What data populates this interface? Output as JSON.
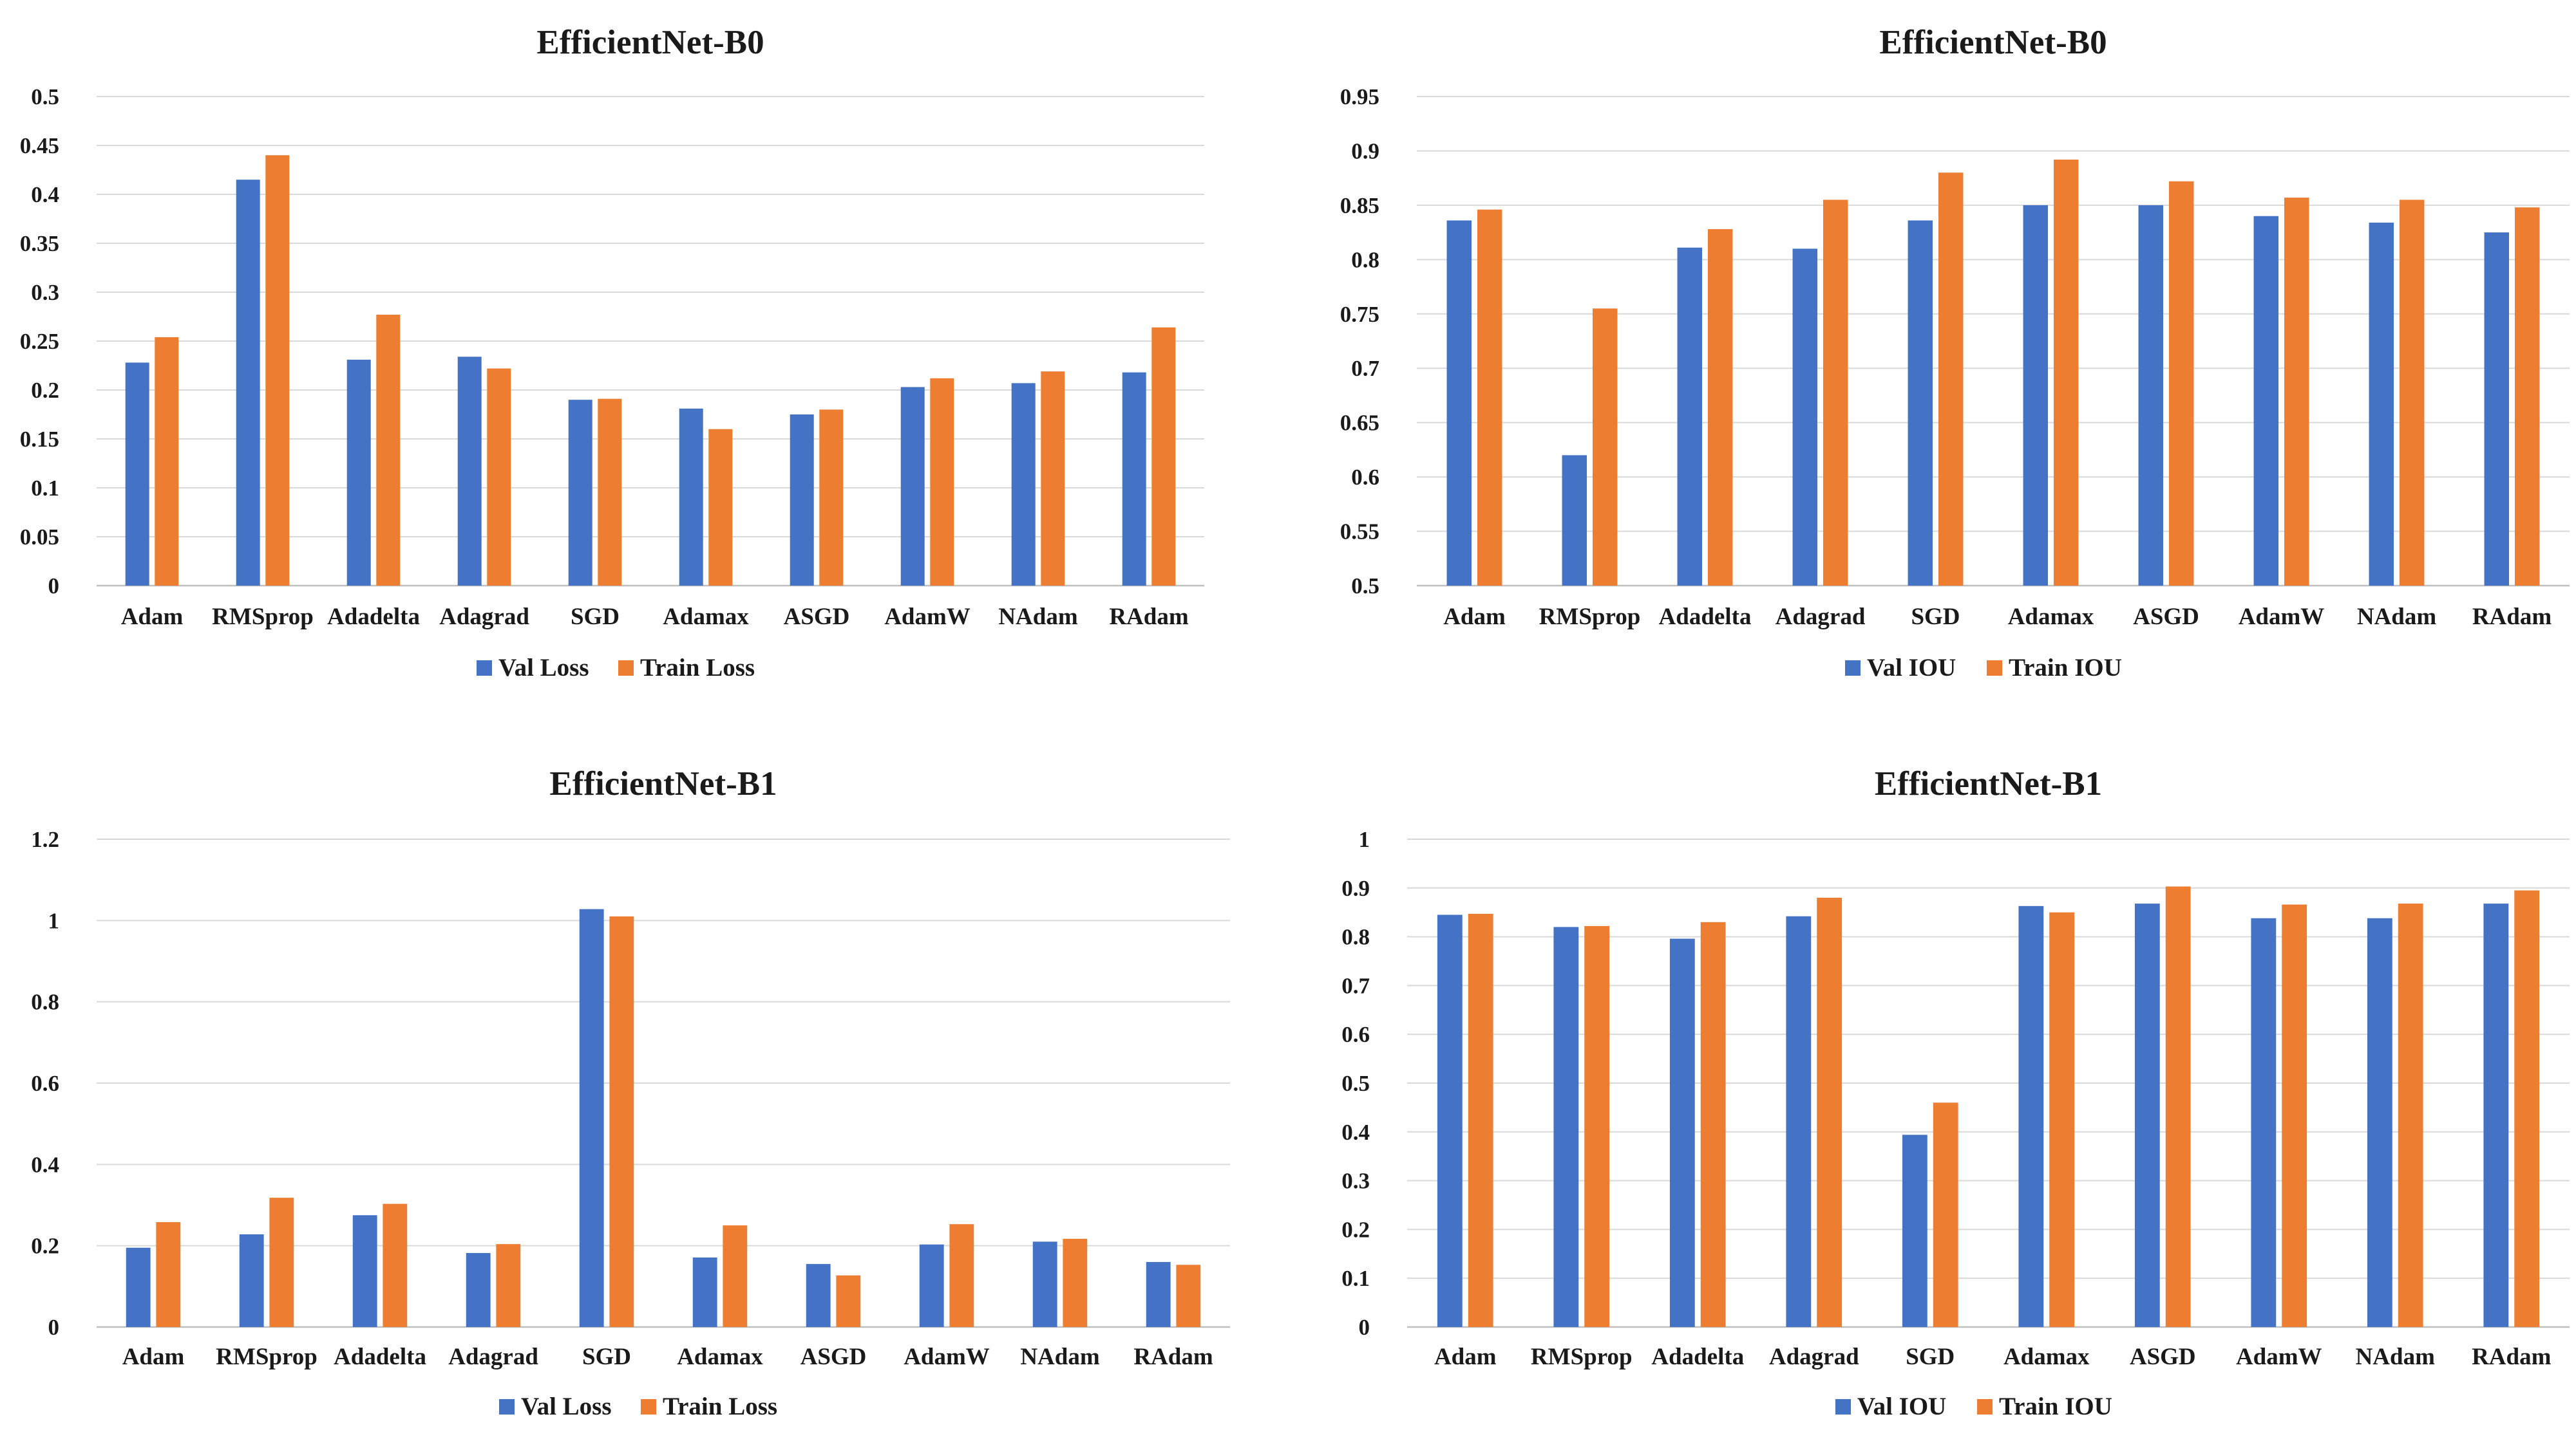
{
  "chart_data": [
    {
      "type": "bar",
      "title": "EfficientNet-B0",
      "categories": [
        "Adam",
        "RMSprop",
        "Adadelta",
        "Adagrad",
        "SGD",
        "Adamax",
        "ASGD",
        "AdamW",
        "NAdam",
        "RAdam"
      ],
      "series": [
        {
          "name": "Val Loss",
          "color": "#4472C4",
          "values": [
            0.228,
            0.415,
            0.231,
            0.234,
            0.19,
            0.181,
            0.175,
            0.203,
            0.207,
            0.218
          ]
        },
        {
          "name": "Train Loss",
          "color": "#ED7D31",
          "values": [
            0.254,
            0.44,
            0.277,
            0.222,
            0.191,
            0.16,
            0.18,
            0.212,
            0.219,
            0.264
          ]
        }
      ],
      "ylim": [
        0,
        0.5
      ],
      "yticks": [
        "0",
        "0.05",
        "0.1",
        "0.15",
        "0.2",
        "0.25",
        "0.3",
        "0.35",
        "0.4",
        "0.45",
        "0.5"
      ],
      "grid": true,
      "legend": "bottom"
    },
    {
      "type": "bar",
      "title": "EfficientNet-B0",
      "categories": [
        "Adam",
        "RMSprop",
        "Adadelta",
        "Adagrad",
        "SGD",
        "Adamax",
        "ASGD",
        "AdamW",
        "NAdam",
        "RAdam"
      ],
      "series": [
        {
          "name": "Val IOU",
          "color": "#4472C4",
          "values": [
            0.836,
            0.62,
            0.811,
            0.81,
            0.836,
            0.85,
            0.85,
            0.84,
            0.834,
            0.825
          ]
        },
        {
          "name": "Train IOU",
          "color": "#ED7D31",
          "values": [
            0.846,
            0.755,
            0.828,
            0.855,
            0.88,
            0.892,
            0.872,
            0.857,
            0.855,
            0.848
          ]
        }
      ],
      "ylim": [
        0.5,
        0.95
      ],
      "yticks": [
        "0.5",
        "0.55",
        "0.6",
        "0.65",
        "0.7",
        "0.75",
        "0.8",
        "0.85",
        "0.9",
        "0.95"
      ],
      "grid": true,
      "legend": "bottom"
    },
    {
      "type": "bar",
      "title": "EfficientNet-B1",
      "categories": [
        "Adam",
        "RMSprop",
        "Adadelta",
        "Adagrad",
        "SGD",
        "Adamax",
        "ASGD",
        "AdamW",
        "NAdam",
        "RAdam"
      ],
      "series": [
        {
          "name": "Val Loss",
          "color": "#4472C4",
          "values": [
            0.195,
            0.228,
            0.275,
            0.182,
            1.028,
            0.171,
            0.155,
            0.203,
            0.21,
            0.16
          ]
        },
        {
          "name": "Train Loss",
          "color": "#ED7D31",
          "values": [
            0.258,
            0.318,
            0.303,
            0.204,
            1.01,
            0.25,
            0.127,
            0.253,
            0.217,
            0.153
          ]
        }
      ],
      "ylim": [
        0,
        1.2
      ],
      "yticks": [
        "0",
        "0.2",
        "0.4",
        "0.6",
        "0.8",
        "1",
        "1.2"
      ],
      "grid": true,
      "legend": "bottom"
    },
    {
      "type": "bar",
      "title": "EfficientNet-B1",
      "categories": [
        "Adam",
        "RMSprop",
        "Adadelta",
        "Adagrad",
        "SGD",
        "Adamax",
        "ASGD",
        "AdamW",
        "NAdam",
        "RAdam"
      ],
      "series": [
        {
          "name": "Val IOU",
          "color": "#4472C4",
          "values": [
            0.845,
            0.82,
            0.796,
            0.842,
            0.394,
            0.863,
            0.868,
            0.838,
            0.838,
            0.868
          ]
        },
        {
          "name": "Train IOU",
          "color": "#ED7D31",
          "values": [
            0.847,
            0.822,
            0.83,
            0.88,
            0.46,
            0.85,
            0.903,
            0.866,
            0.868,
            0.895
          ]
        }
      ],
      "ylim": [
        0,
        1
      ],
      "yticks": [
        "0",
        "0.1",
        "0.2",
        "0.3",
        "0.4",
        "0.5",
        "0.6",
        "0.7",
        "0.8",
        "0.9",
        "1"
      ],
      "grid": true,
      "legend": "bottom"
    }
  ]
}
